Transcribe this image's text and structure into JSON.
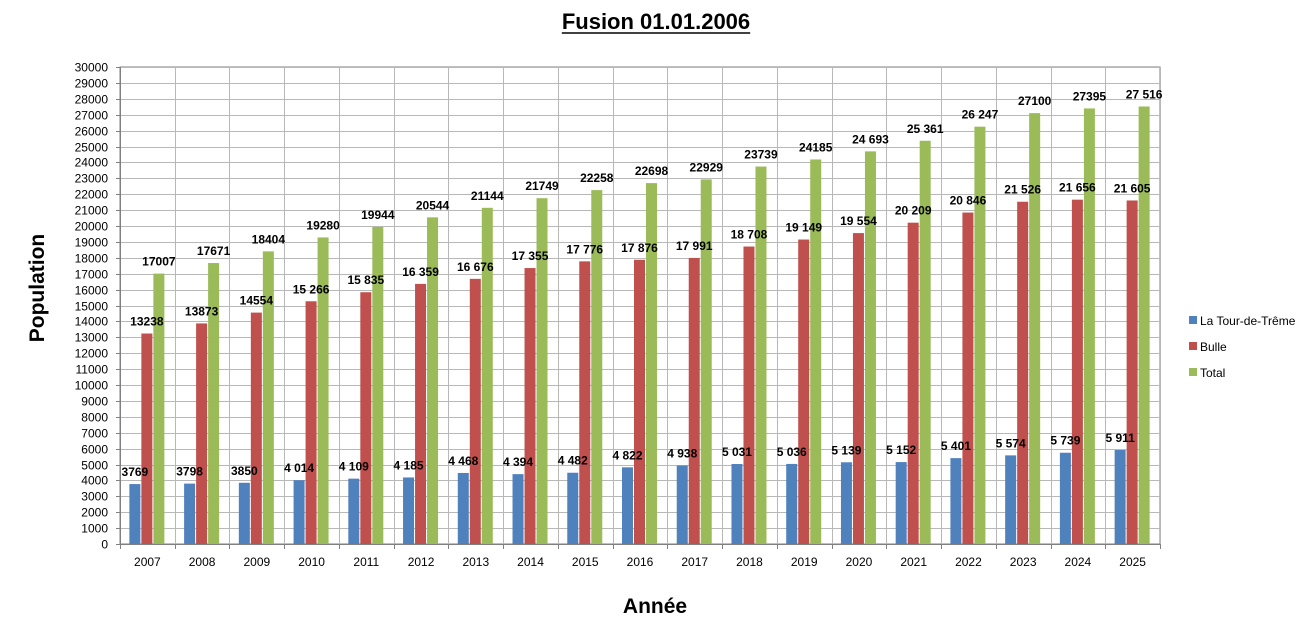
{
  "chart_data": {
    "type": "bar",
    "title": "Fusion 01.01.2006",
    "xlabel": "Année",
    "ylabel": "Population",
    "ylim": [
      0,
      30000
    ],
    "ytick_step": 1000,
    "grid": true,
    "legend_position": "right",
    "categories": [
      "2007",
      "2008",
      "2009",
      "2010",
      "2011",
      "2012",
      "2013",
      "2014",
      "2015",
      "2016",
      "2017",
      "2018",
      "2019",
      "2020",
      "2021",
      "2022",
      "2023",
      "2024",
      "2025"
    ],
    "series": [
      {
        "name": "La Tour-de-Trême",
        "color": "#4F81BD",
        "values": [
          3769,
          3798,
          3850,
          4014,
          4109,
          4185,
          4468,
          4394,
          4482,
          4822,
          4938,
          5031,
          5036,
          5139,
          5152,
          5401,
          5574,
          5739,
          5911
        ],
        "labels": [
          "3769",
          "3798",
          "3850",
          "4 014",
          "4 109",
          "4 185",
          "4 468",
          "4 394",
          "4 482",
          "4 822",
          "4 938",
          "5 031",
          "5 036",
          "5 139",
          "5 152",
          "5 401",
          "5 574",
          "5 739",
          "5 911"
        ]
      },
      {
        "name": "Bulle",
        "color": "#C0504D",
        "values": [
          13238,
          13873,
          14554,
          15266,
          15835,
          16359,
          16676,
          17355,
          17776,
          17876,
          17991,
          18708,
          19149,
          19554,
          20209,
          20846,
          21526,
          21656,
          21605
        ],
        "labels": [
          "13238",
          "13873",
          "14554",
          "15 266",
          "15 835",
          "16 359",
          "16 676",
          "17 355",
          "17 776",
          "17 876",
          "17 991",
          "18 708",
          "19 149",
          "19 554",
          "20 209",
          "20 846",
          "21 526",
          "21 656",
          "21 605"
        ]
      },
      {
        "name": "Total",
        "color": "#9BBB59",
        "values": [
          17007,
          17671,
          18404,
          19280,
          19944,
          20544,
          21144,
          21749,
          22258,
          22698,
          22929,
          23739,
          24185,
          24693,
          25361,
          26247,
          27100,
          27395,
          27516
        ],
        "labels": [
          "17007",
          "17671",
          "18404",
          "19280",
          "19944",
          "20544",
          "21144",
          "21749",
          "22258",
          "22698",
          "22929",
          "23739",
          "24185",
          "24 693",
          "25 361",
          "26 247",
          "27100",
          "27395",
          "27 516"
        ]
      }
    ]
  }
}
